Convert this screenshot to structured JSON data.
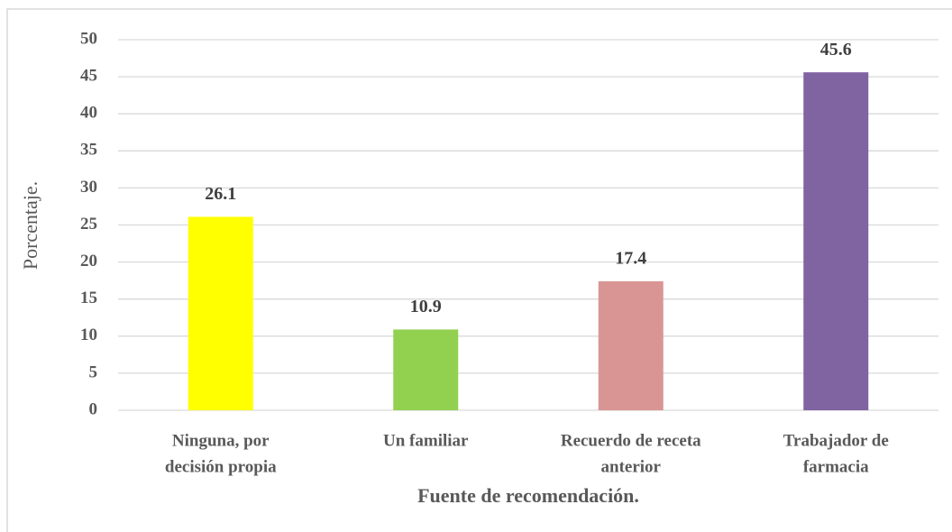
{
  "chart_data": {
    "type": "bar",
    "categories": [
      [
        "Ninguna, por",
        "decisión propia"
      ],
      [
        "Un familiar"
      ],
      [
        "Recuerdo de receta",
        "anterior"
      ],
      [
        "Trabajador de",
        "farmacia"
      ]
    ],
    "values": [
      26.1,
      10.9,
      17.4,
      45.6
    ],
    "colors": [
      "#ffff00",
      "#92d050",
      "#d99594",
      "#8064a2"
    ],
    "x_label": "Fuente de recomendación.",
    "y_label": "Porcentaje.",
    "ylim": [
      0,
      50
    ],
    "yticks": [
      0,
      5,
      10,
      15,
      20,
      25,
      30,
      35,
      40,
      45,
      50
    ],
    "grid": true
  }
}
